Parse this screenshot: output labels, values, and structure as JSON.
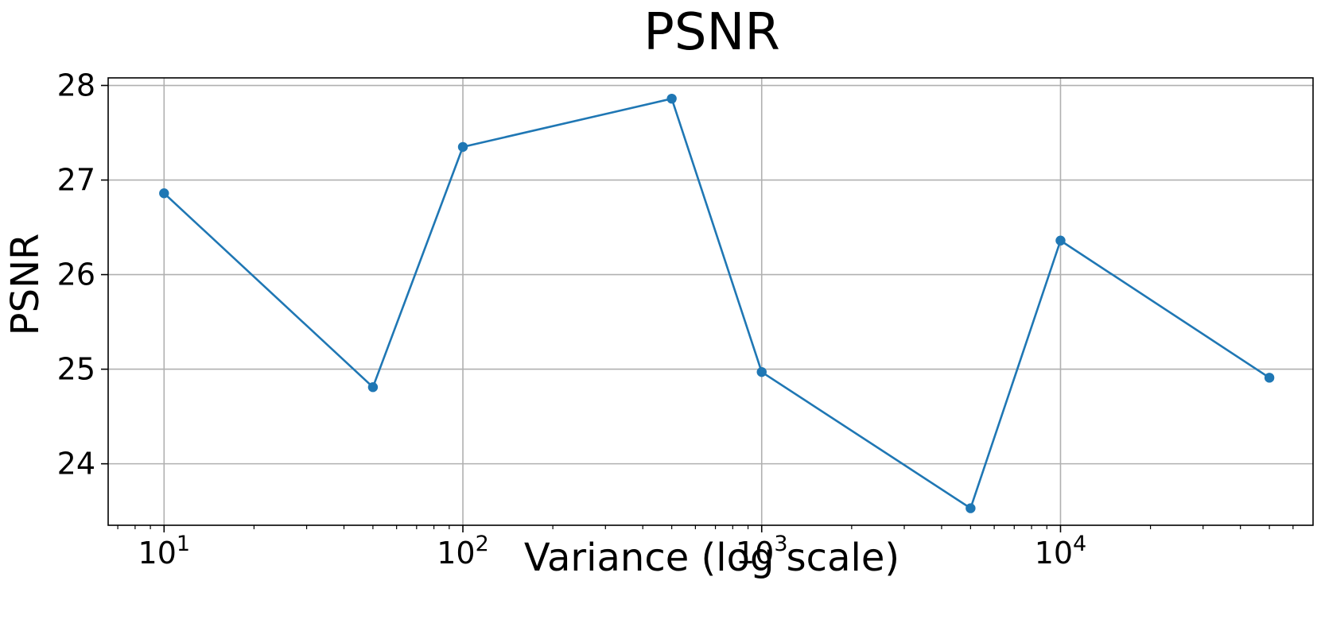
{
  "chart_data": {
    "type": "line",
    "title": "PSNR",
    "xlabel": "Variance (log scale)",
    "ylabel": "PSNR",
    "x_scale": "log",
    "xlim": [
      6.5,
      70000
    ],
    "ylim": [
      23.35,
      28.08
    ],
    "grid": true,
    "legend": "none",
    "x_ticks": [
      {
        "value": 10,
        "base": "10",
        "exp": "1"
      },
      {
        "value": 100,
        "base": "10",
        "exp": "2"
      },
      {
        "value": 1000,
        "base": "10",
        "exp": "3"
      },
      {
        "value": 10000,
        "base": "10",
        "exp": "4"
      }
    ],
    "y_ticks": [
      24,
      25,
      26,
      27,
      28
    ],
    "series": [
      {
        "color": "#1f77b4",
        "x": [
          10,
          50,
          100,
          500,
          1000,
          5000,
          10000,
          50000
        ],
        "y": [
          26.86,
          24.81,
          27.35,
          27.86,
          24.97,
          23.53,
          26.36,
          24.91
        ]
      }
    ]
  }
}
